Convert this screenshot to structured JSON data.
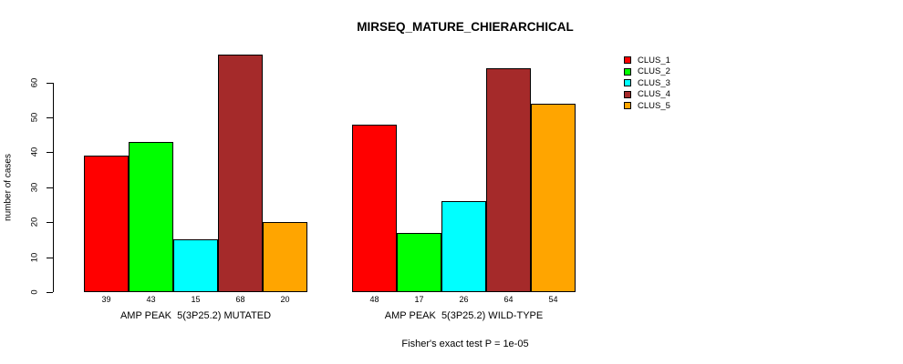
{
  "title": "MIRSEQ_MATURE_CHIERARCHICAL",
  "chart_data": {
    "type": "bar",
    "title": "MIRSEQ_MATURE_CHIERARCHICAL",
    "ylabel": "number of cases",
    "xlabel": "",
    "ylim": [
      0,
      68
    ],
    "yticks": [
      0,
      10,
      20,
      30,
      40,
      50,
      60
    ],
    "grid": false,
    "legend_position": "right",
    "bar_value_labels_shown": true,
    "categories": [
      "AMP PEAK  5(3P25.2) MUTATED",
      "AMP PEAK  5(3P25.2) WILD-TYPE"
    ],
    "series": [
      {
        "name": "CLUS_1",
        "color": "#FF0000",
        "values": [
          39,
          48
        ]
      },
      {
        "name": "CLUS_2",
        "color": "#00FF00",
        "values": [
          43,
          17
        ]
      },
      {
        "name": "CLUS_3",
        "color": "#00FFFF",
        "values": [
          15,
          26
        ]
      },
      {
        "name": "CLUS_4",
        "color": "#A52A2A",
        "values": [
          68,
          64
        ]
      },
      {
        "name": "CLUS_5",
        "color": "#FFA500",
        "values": [
          20,
          54
        ]
      }
    ],
    "footnote": "Fisher's exact test P = 1e-05"
  }
}
